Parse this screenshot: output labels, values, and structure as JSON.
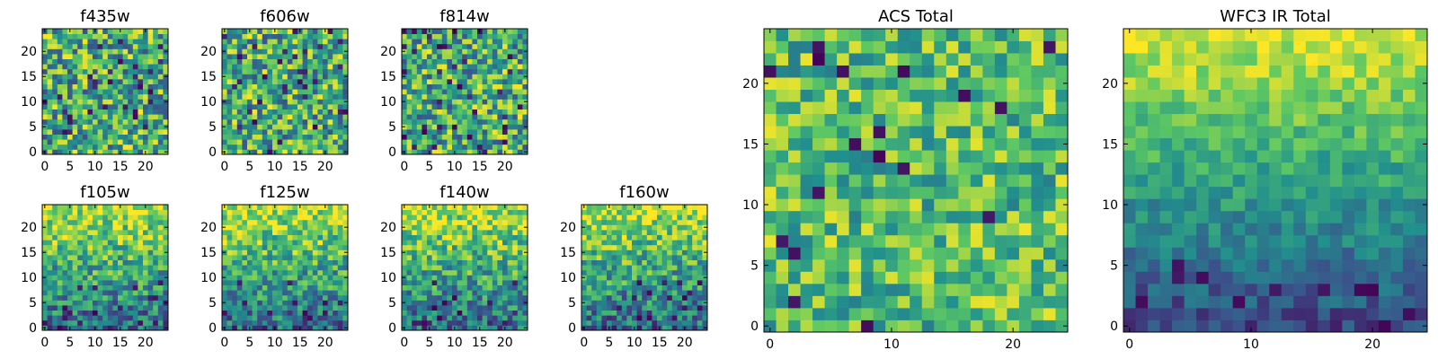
{
  "figure": {
    "background": "#ffffff",
    "colormap": "viridis",
    "colormap_stops": [
      "#440154",
      "#3b528b",
      "#21908d",
      "#5dc863",
      "#fde725"
    ]
  },
  "chart_data": [
    {
      "type": "heatmap",
      "title": "f435w",
      "grid": false,
      "xticks": [
        0,
        5,
        10,
        15,
        20
      ],
      "yticks": [
        0,
        5,
        10,
        15,
        20
      ],
      "xlim": [
        -0.5,
        24.5
      ],
      "ylim": [
        -0.5,
        24.5
      ],
      "pattern": "noise"
    },
    {
      "type": "heatmap",
      "title": "f606w",
      "grid": false,
      "xticks": [
        0,
        5,
        10,
        15,
        20
      ],
      "yticks": [
        0,
        5,
        10,
        15,
        20
      ],
      "xlim": [
        -0.5,
        24.5
      ],
      "ylim": [
        -0.5,
        24.5
      ],
      "pattern": "noise"
    },
    {
      "type": "heatmap",
      "title": "f814w",
      "grid": false,
      "xticks": [
        0,
        5,
        10,
        15,
        20
      ],
      "yticks": [
        0,
        5,
        10,
        15,
        20
      ],
      "xlim": [
        -0.5,
        24.5
      ],
      "ylim": [
        -0.5,
        24.5
      ],
      "pattern": "noise"
    },
    {
      "type": "heatmap",
      "title": "f105w",
      "grid": false,
      "xticks": [
        0,
        5,
        10,
        15,
        20
      ],
      "yticks": [
        0,
        5,
        10,
        15,
        20
      ],
      "xlim": [
        -0.5,
        24.5
      ],
      "ylim": [
        -0.5,
        24.5
      ],
      "pattern": "gradient"
    },
    {
      "type": "heatmap",
      "title": "f125w",
      "grid": false,
      "xticks": [
        0,
        5,
        10,
        15,
        20
      ],
      "yticks": [
        0,
        5,
        10,
        15,
        20
      ],
      "xlim": [
        -0.5,
        24.5
      ],
      "ylim": [
        -0.5,
        24.5
      ],
      "pattern": "gradient"
    },
    {
      "type": "heatmap",
      "title": "f140w",
      "grid": false,
      "xticks": [
        0,
        5,
        10,
        15,
        20
      ],
      "yticks": [
        0,
        5,
        10,
        15,
        20
      ],
      "xlim": [
        -0.5,
        24.5
      ],
      "ylim": [
        -0.5,
        24.5
      ],
      "pattern": "gradient"
    },
    {
      "type": "heatmap",
      "title": "f160w",
      "grid": false,
      "xticks": [
        0,
        5,
        10,
        15,
        20
      ],
      "yticks": [
        0,
        5,
        10,
        15,
        20
      ],
      "xlim": [
        -0.5,
        24.5
      ],
      "ylim": [
        -0.5,
        24.5
      ],
      "pattern": "gradient"
    },
    {
      "type": "heatmap",
      "title": "ACS Total",
      "grid": false,
      "xticks": [
        0,
        10,
        20
      ],
      "yticks": [
        0,
        5,
        10,
        15,
        20
      ],
      "xlim": [
        -0.5,
        24.5
      ],
      "ylim": [
        -0.5,
        24.5
      ],
      "pattern": "noise-smooth"
    },
    {
      "type": "heatmap",
      "title": "WFC3 IR Total",
      "grid": false,
      "xticks": [
        0,
        10,
        20
      ],
      "yticks": [
        0,
        5,
        10,
        15,
        20
      ],
      "xlim": [
        -0.5,
        24.5
      ],
      "ylim": [
        -0.5,
        24.5
      ],
      "pattern": "gradient-smooth"
    }
  ]
}
